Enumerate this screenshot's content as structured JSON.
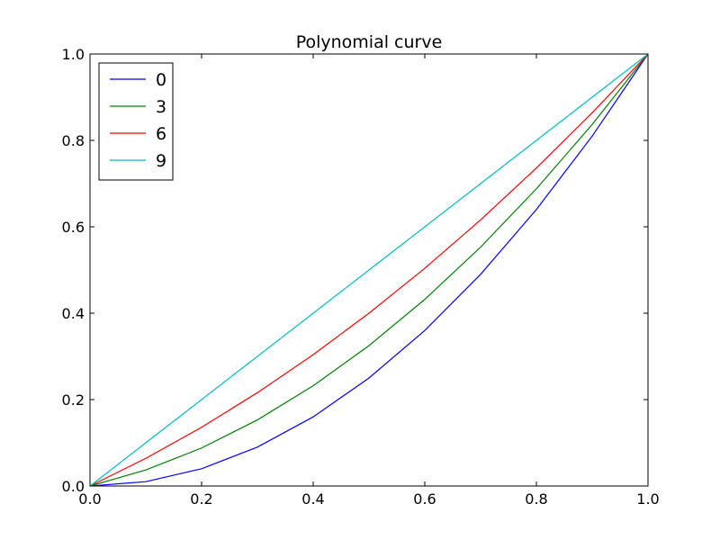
{
  "chart_data": {
    "type": "line",
    "title": "Polynomial curve",
    "xlabel": "",
    "ylabel": "",
    "xlim": [
      0.0,
      1.0
    ],
    "ylim": [
      0.0,
      1.0
    ],
    "xticks": [
      "0.0",
      "0.2",
      "0.4",
      "0.6",
      "0.8",
      "1.0"
    ],
    "yticks": [
      "0.0",
      "0.2",
      "0.4",
      "0.6",
      "0.8",
      "1.0"
    ],
    "grid": false,
    "legend_position": "top-left",
    "x": [
      0.0,
      0.1,
      0.2,
      0.3,
      0.4,
      0.5,
      0.6,
      0.7,
      0.8,
      0.9,
      1.0
    ],
    "series": [
      {
        "name": "0",
        "color": "#0000ff",
        "values": [
          0.0,
          0.01,
          0.04,
          0.09,
          0.16,
          0.25,
          0.36,
          0.49,
          0.64,
          0.81,
          1.0
        ]
      },
      {
        "name": "3",
        "color": "#008000",
        "values": [
          0.0,
          0.037,
          0.088,
          0.153,
          0.232,
          0.325,
          0.432,
          0.553,
          0.688,
          0.837,
          1.0
        ]
      },
      {
        "name": "6",
        "color": "#ff0000",
        "values": [
          0.0,
          0.064,
          0.136,
          0.216,
          0.304,
          0.4,
          0.504,
          0.616,
          0.736,
          0.864,
          1.0
        ]
      },
      {
        "name": "9",
        "color": "#00bfbf",
        "values": [
          0.0,
          0.1,
          0.2,
          0.3,
          0.4,
          0.5,
          0.6,
          0.7,
          0.8,
          0.9,
          1.0
        ]
      }
    ]
  }
}
